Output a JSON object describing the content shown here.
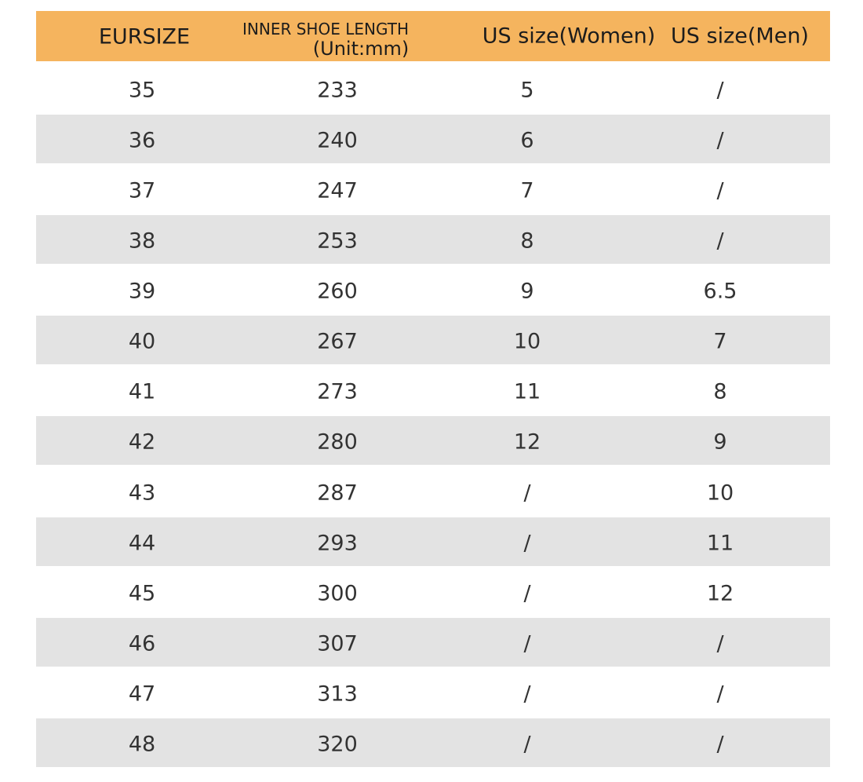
{
  "table": {
    "header": [
      "EURSIZE",
      "INNER SHOE LENGTH",
      "(Unit:mm)",
      "US size(Women)",
      "US size(Men)"
    ],
    "rows": [
      [
        "35",
        "233",
        "5",
        "/"
      ],
      [
        "36",
        "240",
        "6",
        "/"
      ],
      [
        "37",
        "247",
        "7",
        "/"
      ],
      [
        "38",
        "253",
        "8",
        "/"
      ],
      [
        "39",
        "260",
        "9",
        "6.5"
      ],
      [
        "40",
        "267",
        "10",
        "7"
      ],
      [
        "41",
        "273",
        "11",
        "8"
      ],
      [
        "42",
        "280",
        "12",
        "9"
      ],
      [
        "43",
        "287",
        "/",
        "10"
      ],
      [
        "44",
        "293",
        "/",
        "11"
      ],
      [
        "45",
        "300",
        "/",
        "12"
      ],
      [
        "46",
        "307",
        "/",
        "/"
      ],
      [
        "47",
        "313",
        "/",
        "/"
      ],
      [
        "48",
        "320",
        "/",
        "/"
      ]
    ]
  }
}
